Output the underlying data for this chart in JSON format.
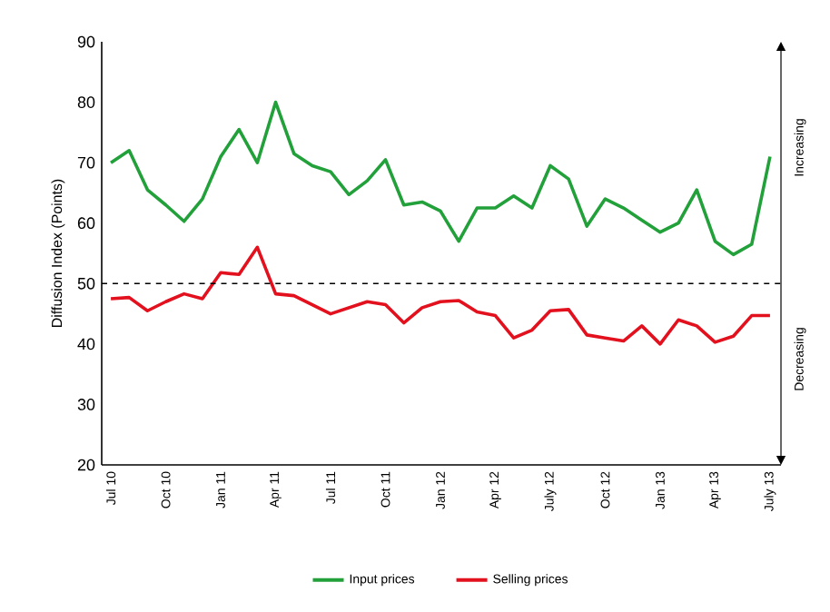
{
  "chart_data": {
    "type": "line",
    "ylabel": "Diffusion Index (Points)",
    "categories": [
      "Jul 10",
      null,
      null,
      "Oct 10",
      null,
      null,
      "Jan 11",
      null,
      null,
      "Apr 11",
      null,
      null,
      "Jul 11",
      null,
      null,
      "Oct 11",
      null,
      null,
      "Jan 12",
      null,
      null,
      "Apr 12",
      null,
      null,
      "July 12",
      null,
      null,
      "Oct 12",
      null,
      null,
      "Jan 13",
      null,
      null,
      "Apr 13",
      null,
      null,
      "July 13"
    ],
    "series": [
      {
        "name": "Input prices",
        "color": "#22a03a",
        "values": [
          70,
          72,
          65.5,
          63,
          60.3,
          64,
          71,
          75.5,
          70,
          80,
          71.5,
          69.5,
          68.5,
          64.7,
          67,
          70.5,
          63,
          63.5,
          62,
          57,
          62.5,
          62.5,
          64.5,
          62.5,
          69.5,
          67.3,
          59.5,
          64,
          62.5,
          60.5,
          58.5,
          60,
          65.5,
          57,
          54.8,
          56.5,
          71
        ]
      },
      {
        "name": "Selling prices",
        "color": "#e3101e",
        "values": [
          47.5,
          47.7,
          45.5,
          47,
          48.3,
          47.5,
          51.8,
          51.5,
          56,
          48.3,
          48,
          46.5,
          45,
          46,
          47,
          46.5,
          43.5,
          46,
          47,
          47.2,
          45.3,
          44.7,
          41,
          42.3,
          45.5,
          45.7,
          41.5,
          41,
          40.5,
          43,
          40,
          44,
          43,
          40.3,
          41.3,
          44.7,
          44.7
        ]
      }
    ],
    "ylim": [
      20,
      90
    ],
    "yticks": [
      20,
      30,
      40,
      50,
      60,
      70,
      80,
      90
    ],
    "ref_lines": [
      {
        "axis": "y",
        "value": 50,
        "line_style": "dashed"
      }
    ],
    "annotations": [
      "Increasing",
      "Decreasing"
    ],
    "legend": "bottom",
    "marker": "none",
    "line_style": "solid",
    "grid": false
  }
}
